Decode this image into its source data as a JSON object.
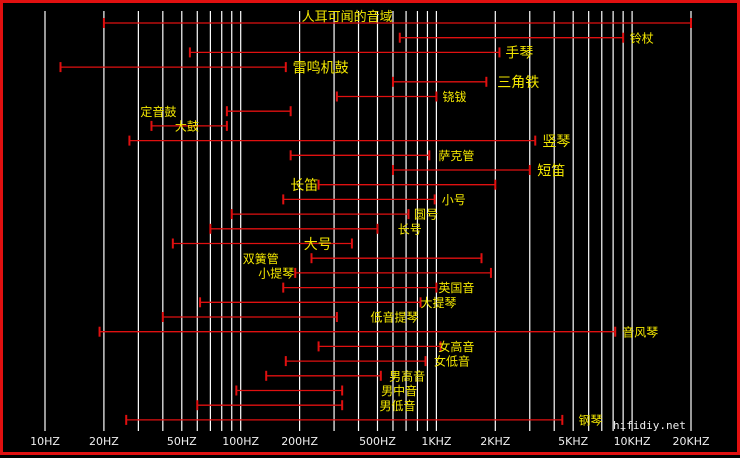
{
  "chart_data": {
    "type": "range-bar",
    "title": "",
    "xlabel": "",
    "ylabel": "",
    "xscale": "log",
    "xlim": [
      10,
      20000
    ],
    "colors": {
      "background": "#000000",
      "range": "#e01010",
      "grid": "#ffffff",
      "label": "#f2e600",
      "frame": "#e01010"
    },
    "tick_labels": [
      {
        "value": 10,
        "label": "10HZ"
      },
      {
        "value": 20,
        "label": "20HZ"
      },
      {
        "value": 50,
        "label": "50HZ"
      },
      {
        "value": 100,
        "label": "100HZ"
      },
      {
        "value": 200,
        "label": "200HZ"
      },
      {
        "value": 500,
        "label": "500HZ"
      },
      {
        "value": 1000,
        "label": "1KHZ"
      },
      {
        "value": 2000,
        "label": "2KHZ"
      },
      {
        "value": 5000,
        "label": "5KHZ"
      },
      {
        "value": 10000,
        "label": "10KHZ"
      },
      {
        "value": 20000,
        "label": "20KHZ"
      }
    ],
    "gridlines": [
      10,
      20,
      30,
      40,
      50,
      60,
      70,
      80,
      90,
      100,
      200,
      300,
      400,
      500,
      600,
      700,
      800,
      900,
      1000,
      2000,
      3000,
      4000,
      5000,
      6000,
      7000,
      8000,
      9000,
      10000,
      20000
    ],
    "ranges": [
      {
        "name": "人耳可闻的音域",
        "low": 20,
        "high": 20000,
        "label_at": 350,
        "label_side": "above",
        "size": 13
      },
      {
        "name": "铃杖",
        "low": 650,
        "high": 9000,
        "label_at": 9500,
        "label_side": "right",
        "size": 12
      },
      {
        "name": "手琴",
        "low": 55,
        "high": 2100,
        "label_at": 2200,
        "label_side": "right",
        "size": 14
      },
      {
        "name": "雷鸣机鼓",
        "low": 12,
        "high": 170,
        "label_at": 180,
        "label_side": "right",
        "size": 14
      },
      {
        "name": "三角铁",
        "low": 600,
        "high": 1800,
        "label_at": 2000,
        "label_side": "right",
        "size": 14
      },
      {
        "name": "铙钹",
        "low": 310,
        "high": 1000,
        "label_at": 1050,
        "label_side": "right",
        "size": 12
      },
      {
        "name": "定音鼓",
        "low": 85,
        "high": 180,
        "label_at": 30,
        "label_side": "right",
        "size": 12
      },
      {
        "name": "大鼓",
        "low": 35,
        "high": 85,
        "label_at": 45,
        "label_side": "right",
        "size": 12
      },
      {
        "name": "竖琴",
        "low": 27,
        "high": 3200,
        "label_at": 3400,
        "label_side": "right",
        "size": 14
      },
      {
        "name": "萨克管",
        "low": 180,
        "high": 920,
        "label_at": 1000,
        "label_side": "right",
        "size": 12
      },
      {
        "name": "短笛",
        "low": 600,
        "high": 3000,
        "label_at": 3200,
        "label_side": "right",
        "size": 14
      },
      {
        "name": "长笛",
        "low": 250,
        "high": 2000,
        "label_at": 175,
        "label_side": "right",
        "size": 14
      },
      {
        "name": "小号",
        "low": 165,
        "high": 980,
        "label_at": 1040,
        "label_side": "right",
        "size": 12
      },
      {
        "name": "圆号",
        "low": 90,
        "high": 720,
        "label_at": 750,
        "label_side": "right",
        "size": 12
      },
      {
        "name": "长号",
        "low": 70,
        "high": 500,
        "label_at": 620,
        "label_side": "right",
        "size": 12
      },
      {
        "name": "大号",
        "low": 45,
        "high": 370,
        "label_at": 205,
        "label_side": "right",
        "size": 14
      },
      {
        "name": "双簧管",
        "low": 230,
        "high": 1700,
        "label_at": 100,
        "label_side": "right",
        "size": 12
      },
      {
        "name": "小提琴",
        "low": 190,
        "high": 1900,
        "label_at": 120,
        "label_side": "right",
        "size": 12
      },
      {
        "name": "英国音",
        "low": 165,
        "high": 1000,
        "label_at": 1000,
        "label_side": "right",
        "size": 12
      },
      {
        "name": "大提琴",
        "low": 62,
        "high": 830,
        "label_at": 810,
        "label_side": "right",
        "size": 12
      },
      {
        "name": "低音提琴",
        "low": 40,
        "high": 310,
        "label_at": 450,
        "label_side": "right",
        "size": 12
      },
      {
        "name": "音风琴",
        "low": 19,
        "high": 8200,
        "label_at": 8700,
        "label_side": "right",
        "size": 12
      },
      {
        "name": "女高音",
        "low": 250,
        "high": 1050,
        "label_at": 1000,
        "label_side": "right",
        "size": 12
      },
      {
        "name": "女低音",
        "low": 170,
        "high": 880,
        "label_at": 950,
        "label_side": "right",
        "size": 12
      },
      {
        "name": "男高音",
        "low": 135,
        "high": 520,
        "label_at": 560,
        "label_side": "right",
        "size": 12
      },
      {
        "name": "男中音",
        "low": 95,
        "high": 330,
        "label_at": 510,
        "label_side": "right",
        "size": 12
      },
      {
        "name": "男低音",
        "low": 60,
        "high": 330,
        "label_at": 500,
        "label_side": "right",
        "size": 12
      },
      {
        "name": "钢琴",
        "low": 26,
        "high": 4400,
        "label_at": 5200,
        "label_side": "right",
        "size": 12
      }
    ]
  },
  "watermark": "hifidiy.net"
}
